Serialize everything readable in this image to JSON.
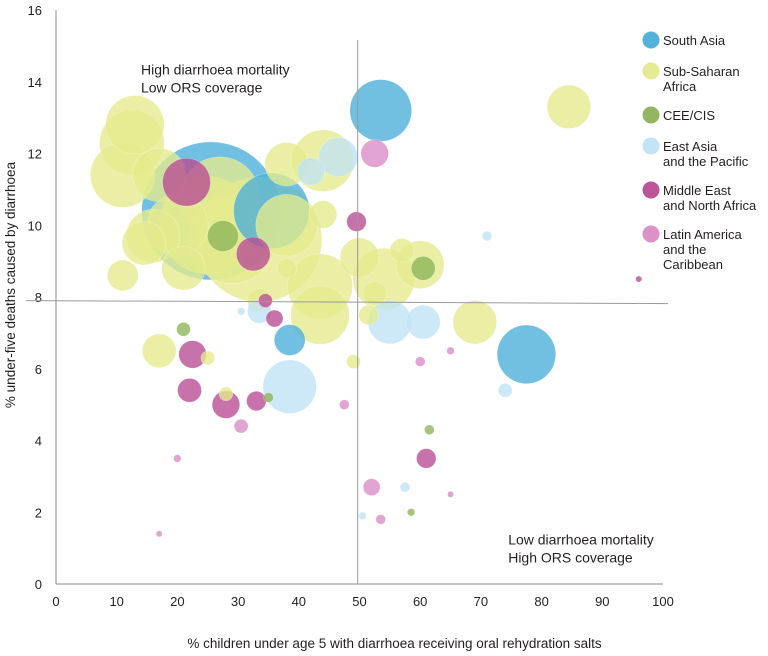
{
  "chart_data": {
    "type": "scatter",
    "xlabel": "% children under age 5 with diarrhoea receiving oral rehydration salts",
    "ylabel": "% under-five deaths caused by diarrhoea",
    "xlim": [
      0,
      100
    ],
    "ylim": [
      0,
      16
    ],
    "x_ticks": [
      "0",
      "10",
      "20",
      "30",
      "40",
      "50",
      "60",
      "70",
      "80",
      "90",
      "100"
    ],
    "y_ticks": [
      "0",
      "2",
      "4",
      "6",
      "8",
      "10",
      "12",
      "14",
      "16"
    ],
    "grid": false,
    "legend_position": "top-right",
    "reference_lines": {
      "x": 49.7,
      "y": 7.9
    },
    "annotations": [
      {
        "lines": [
          "High diarrhoea mortality",
          "Low ORS coverage"
        ],
        "x": 14,
        "y": 14.2,
        "anchor": "start"
      },
      {
        "lines": [
          "Low diarrhoea mortality",
          "High ORS coverage"
        ],
        "x": 74.5,
        "y": 1.1,
        "anchor": "start"
      }
    ],
    "bubble_size_note": "relative bubble area",
    "series": [
      {
        "name": "South Asia",
        "color": "#4aaed9",
        "points": [
          {
            "x": 25.5,
            "y": 10.4,
            "size": 1.0
          },
          {
            "x": 35.5,
            "y": 10.4,
            "size": 0.3
          },
          {
            "x": 53.5,
            "y": 13.2,
            "size": 0.2
          },
          {
            "x": 77.5,
            "y": 6.4,
            "size": 0.18
          },
          {
            "x": 38.5,
            "y": 6.8,
            "size": 0.05
          }
        ]
      },
      {
        "name": "Sub-Saharan Africa",
        "color": "#e4ea8c",
        "points": [
          {
            "x": 33.5,
            "y": 9.6,
            "size": 0.82
          },
          {
            "x": 25.0,
            "y": 10.0,
            "size": 0.5
          },
          {
            "x": 29.0,
            "y": 9.6,
            "size": 0.4
          },
          {
            "x": 27.0,
            "y": 10.8,
            "size": 0.33
          },
          {
            "x": 13.0,
            "y": 12.8,
            "size": 0.18
          },
          {
            "x": 12.5,
            "y": 12.3,
            "size": 0.22
          },
          {
            "x": 11.0,
            "y": 11.4,
            "size": 0.22
          },
          {
            "x": 17.0,
            "y": 11.4,
            "size": 0.15
          },
          {
            "x": 16.0,
            "y": 9.7,
            "size": 0.15
          },
          {
            "x": 14.5,
            "y": 9.5,
            "size": 0.1
          },
          {
            "x": 21.0,
            "y": 8.8,
            "size": 0.1
          },
          {
            "x": 11.0,
            "y": 8.6,
            "size": 0.05
          },
          {
            "x": 20.0,
            "y": 10.0,
            "size": 0.2
          },
          {
            "x": 38.0,
            "y": 11.7,
            "size": 0.1
          },
          {
            "x": 44.0,
            "y": 11.8,
            "size": 0.2
          },
          {
            "x": 38.0,
            "y": 10.0,
            "size": 0.2
          },
          {
            "x": 43.5,
            "y": 8.3,
            "size": 0.22
          },
          {
            "x": 43.5,
            "y": 7.5,
            "size": 0.18
          },
          {
            "x": 50.0,
            "y": 9.1,
            "size": 0.08
          },
          {
            "x": 54.0,
            "y": 8.5,
            "size": 0.2
          },
          {
            "x": 60.0,
            "y": 8.9,
            "size": 0.12
          },
          {
            "x": 69.0,
            "y": 7.3,
            "size": 0.1
          },
          {
            "x": 84.5,
            "y": 13.3,
            "size": 0.1
          },
          {
            "x": 52.5,
            "y": 8.1,
            "size": 0.03
          },
          {
            "x": 57.0,
            "y": 9.3,
            "size": 0.03
          },
          {
            "x": 17.0,
            "y": 6.5,
            "size": 0.06
          },
          {
            "x": 44.0,
            "y": 10.3,
            "size": 0.04
          },
          {
            "x": 33.5,
            "y": 7.9,
            "size": 0.03
          },
          {
            "x": 51.5,
            "y": 7.5,
            "size": 0.02
          },
          {
            "x": 38.0,
            "y": 8.8,
            "size": 0.02
          },
          {
            "x": 49.0,
            "y": 6.2,
            "size": 0.01
          },
          {
            "x": 25.0,
            "y": 6.3,
            "size": 0.01
          },
          {
            "x": 28.0,
            "y": 5.3,
            "size": 0.01
          }
        ]
      },
      {
        "name": "CEE/CIS",
        "color": "#8cb357",
        "points": [
          {
            "x": 27.5,
            "y": 9.7,
            "size": 0.05
          },
          {
            "x": 60.5,
            "y": 8.8,
            "size": 0.03
          },
          {
            "x": 21.0,
            "y": 7.1,
            "size": 0.01
          },
          {
            "x": 35.0,
            "y": 5.2,
            "size": 0.005
          },
          {
            "x": 61.5,
            "y": 4.3,
            "size": 0.005
          },
          {
            "x": 58.5,
            "y": 2.0,
            "size": 0.003
          }
        ]
      },
      {
        "name": "East Asia and the Pacific",
        "color": "#bfe3f5",
        "points": [
          {
            "x": 46.5,
            "y": 11.9,
            "size": 0.08
          },
          {
            "x": 42.0,
            "y": 11.5,
            "size": 0.04
          },
          {
            "x": 55.0,
            "y": 7.3,
            "size": 0.1
          },
          {
            "x": 60.5,
            "y": 7.3,
            "size": 0.06
          },
          {
            "x": 38.5,
            "y": 5.5,
            "size": 0.15
          },
          {
            "x": 33.5,
            "y": 7.6,
            "size": 0.03
          },
          {
            "x": 74.0,
            "y": 5.4,
            "size": 0.01
          },
          {
            "x": 71.0,
            "y": 9.7,
            "size": 0.005
          },
          {
            "x": 57.5,
            "y": 2.7,
            "size": 0.005
          },
          {
            "x": 30.5,
            "y": 7.6,
            "size": 0.003
          },
          {
            "x": 50.5,
            "y": 1.9,
            "size": 0.003
          }
        ]
      },
      {
        "name": "Middle East and North Africa",
        "color": "#b94a93",
        "points": [
          {
            "x": 21.5,
            "y": 11.2,
            "size": 0.12
          },
          {
            "x": 32.5,
            "y": 9.2,
            "size": 0.06
          },
          {
            "x": 22.5,
            "y": 6.4,
            "size": 0.04
          },
          {
            "x": 22.0,
            "y": 5.4,
            "size": 0.03
          },
          {
            "x": 28.0,
            "y": 5.0,
            "size": 0.04
          },
          {
            "x": 33.0,
            "y": 5.1,
            "size": 0.02
          },
          {
            "x": 49.5,
            "y": 10.1,
            "size": 0.02
          },
          {
            "x": 61.0,
            "y": 3.5,
            "size": 0.02
          },
          {
            "x": 36.0,
            "y": 7.4,
            "size": 0.015
          },
          {
            "x": 34.5,
            "y": 7.9,
            "size": 0.01
          },
          {
            "x": 96.0,
            "y": 8.5,
            "size": 0.002
          }
        ]
      },
      {
        "name": "Latin America and the Caribbean",
        "color": "#da8bc5",
        "points": [
          {
            "x": 52.5,
            "y": 12.0,
            "size": 0.04
          },
          {
            "x": 30.5,
            "y": 4.4,
            "size": 0.01
          },
          {
            "x": 52.0,
            "y": 2.7,
            "size": 0.015
          },
          {
            "x": 53.5,
            "y": 1.8,
            "size": 0.005
          },
          {
            "x": 60.0,
            "y": 6.2,
            "size": 0.005
          },
          {
            "x": 65.0,
            "y": 6.5,
            "size": 0.003
          },
          {
            "x": 47.5,
            "y": 5.0,
            "size": 0.005
          },
          {
            "x": 20.0,
            "y": 3.5,
            "size": 0.003
          },
          {
            "x": 17.0,
            "y": 1.4,
            "size": 0.002
          },
          {
            "x": 65.0,
            "y": 2.5,
            "size": 0.002
          }
        ]
      }
    ],
    "legend": [
      {
        "lines": [
          "South Asia"
        ],
        "color": "#4aaed9"
      },
      {
        "lines": [
          "Sub-Saharan",
          "Africa"
        ],
        "color": "#e4ea8c"
      },
      {
        "lines": [
          "CEE/CIS"
        ],
        "color": "#8cb357"
      },
      {
        "lines": [
          "East Asia",
          "and the Pacific"
        ],
        "color": "#bfe3f5"
      },
      {
        "lines": [
          "Middle East",
          "and North Africa"
        ],
        "color": "#b94a93"
      },
      {
        "lines": [
          "Latin America",
          "and the",
          "Caribbean"
        ],
        "color": "#da8bc5"
      }
    ]
  }
}
